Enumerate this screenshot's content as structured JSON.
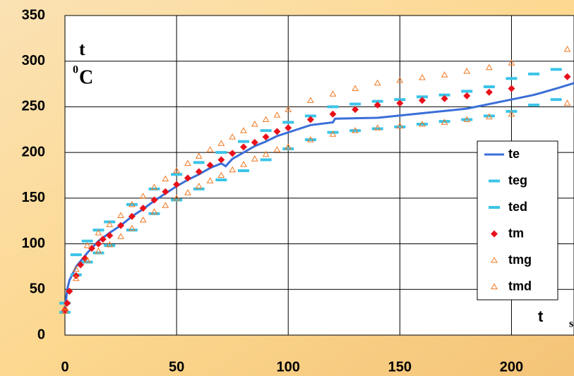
{
  "chart_data": {
    "type": "line",
    "ylabel": "t",
    "yunit_sup": "0",
    "yunit": "C",
    "xlabel": "t",
    "xunit": "s",
    "xlim": [
      0,
      228
    ],
    "ylim": [
      0,
      350
    ],
    "xticks": [
      0,
      50,
      100,
      150,
      200
    ],
    "yticks": [
      0,
      50,
      100,
      150,
      200,
      250,
      300,
      350
    ],
    "grid": true,
    "legend": "right",
    "series": [
      {
        "name": "te",
        "color": "#3a6fd8",
        "style": "line",
        "x": [
          0,
          1,
          2,
          5,
          10,
          15,
          20,
          25,
          30,
          35,
          40,
          45,
          50,
          55,
          60,
          65,
          70,
          72,
          75,
          80,
          85,
          90,
          95,
          100,
          105,
          110,
          120,
          121,
          140,
          160,
          180,
          200,
          210,
          220,
          228
        ],
        "values": [
          27,
          50,
          60,
          75,
          90,
          103,
          112,
          120,
          130,
          138,
          147,
          155,
          163,
          170,
          176,
          183,
          188,
          185,
          193,
          200,
          207,
          212,
          218,
          222,
          226,
          230,
          233,
          237,
          238,
          243,
          248,
          258,
          263,
          270,
          276
        ]
      },
      {
        "name": "teg",
        "color": "#3cc4e8",
        "style": "dash",
        "x": [
          0,
          5,
          10,
          15,
          20,
          30,
          40,
          50,
          60,
          70,
          80,
          90,
          100,
          110,
          120,
          130,
          140,
          150,
          160,
          170,
          180,
          190,
          200,
          210,
          220
        ],
        "values": [
          35,
          88,
          103,
          115,
          124,
          143,
          160,
          176,
          189,
          200,
          212,
          224,
          233,
          240,
          250,
          253,
          256,
          258,
          261,
          263,
          267,
          272,
          281,
          286,
          291
        ]
      },
      {
        "name": "ted",
        "color": "#3cc4e8",
        "style": "dash",
        "x": [
          0,
          5,
          10,
          15,
          20,
          30,
          40,
          50,
          60,
          70,
          80,
          90,
          100,
          110,
          120,
          130,
          140,
          150,
          160,
          170,
          180,
          190,
          200,
          210,
          220
        ],
        "values": [
          25,
          66,
          80,
          90,
          98,
          115,
          133,
          148,
          160,
          170,
          180,
          192,
          204,
          214,
          222,
          224,
          226,
          228,
          231,
          234,
          236,
          240,
          245,
          252,
          258
        ]
      },
      {
        "name": "tm",
        "color": "#e8101a",
        "style": "diamond",
        "x": [
          0,
          1,
          2,
          5,
          7,
          9,
          12,
          15,
          17,
          20,
          25,
          30,
          35,
          40,
          45,
          50,
          55,
          60,
          65,
          70,
          75,
          80,
          85,
          90,
          95,
          100,
          110,
          120,
          130,
          140,
          150,
          160,
          170,
          180,
          190,
          200,
          225
        ],
        "values": [
          27,
          35,
          48,
          65,
          77,
          84,
          95,
          100,
          105,
          109,
          120,
          130,
          139,
          148,
          157,
          165,
          172,
          179,
          186,
          192,
          199,
          206,
          211,
          217,
          223,
          227,
          236,
          242,
          247,
          252,
          254,
          257,
          259,
          262,
          266,
          270,
          283
        ]
      },
      {
        "name": "tmg",
        "color": "#f07820",
        "style": "triangle",
        "x": [
          0,
          5,
          10,
          15,
          20,
          25,
          30,
          35,
          40,
          45,
          50,
          55,
          60,
          65,
          70,
          75,
          80,
          85,
          90,
          95,
          100,
          110,
          120,
          130,
          140,
          150,
          160,
          170,
          180,
          190,
          200,
          225
        ],
        "values": [
          30,
          72,
          98,
          112,
          121,
          131,
          143,
          152,
          162,
          171,
          180,
          188,
          196,
          203,
          210,
          217,
          224,
          231,
          236,
          241,
          247,
          257,
          264,
          270,
          276,
          279,
          282,
          285,
          289,
          293,
          298,
          313
        ]
      },
      {
        "name": "tmd",
        "color": "#f07820",
        "style": "triangle",
        "x": [
          0,
          5,
          10,
          15,
          20,
          25,
          30,
          35,
          40,
          45,
          50,
          55,
          60,
          65,
          70,
          75,
          80,
          85,
          90,
          95,
          100,
          110,
          120,
          130,
          140,
          150,
          160,
          170,
          180,
          190,
          200,
          225
        ],
        "values": [
          26,
          62,
          82,
          92,
          99,
          108,
          117,
          126,
          135,
          142,
          150,
          156,
          163,
          169,
          175,
          181,
          187,
          193,
          198,
          203,
          206,
          214,
          220,
          224,
          227,
          229,
          231,
          233,
          236,
          239,
          242,
          254
        ]
      }
    ]
  }
}
